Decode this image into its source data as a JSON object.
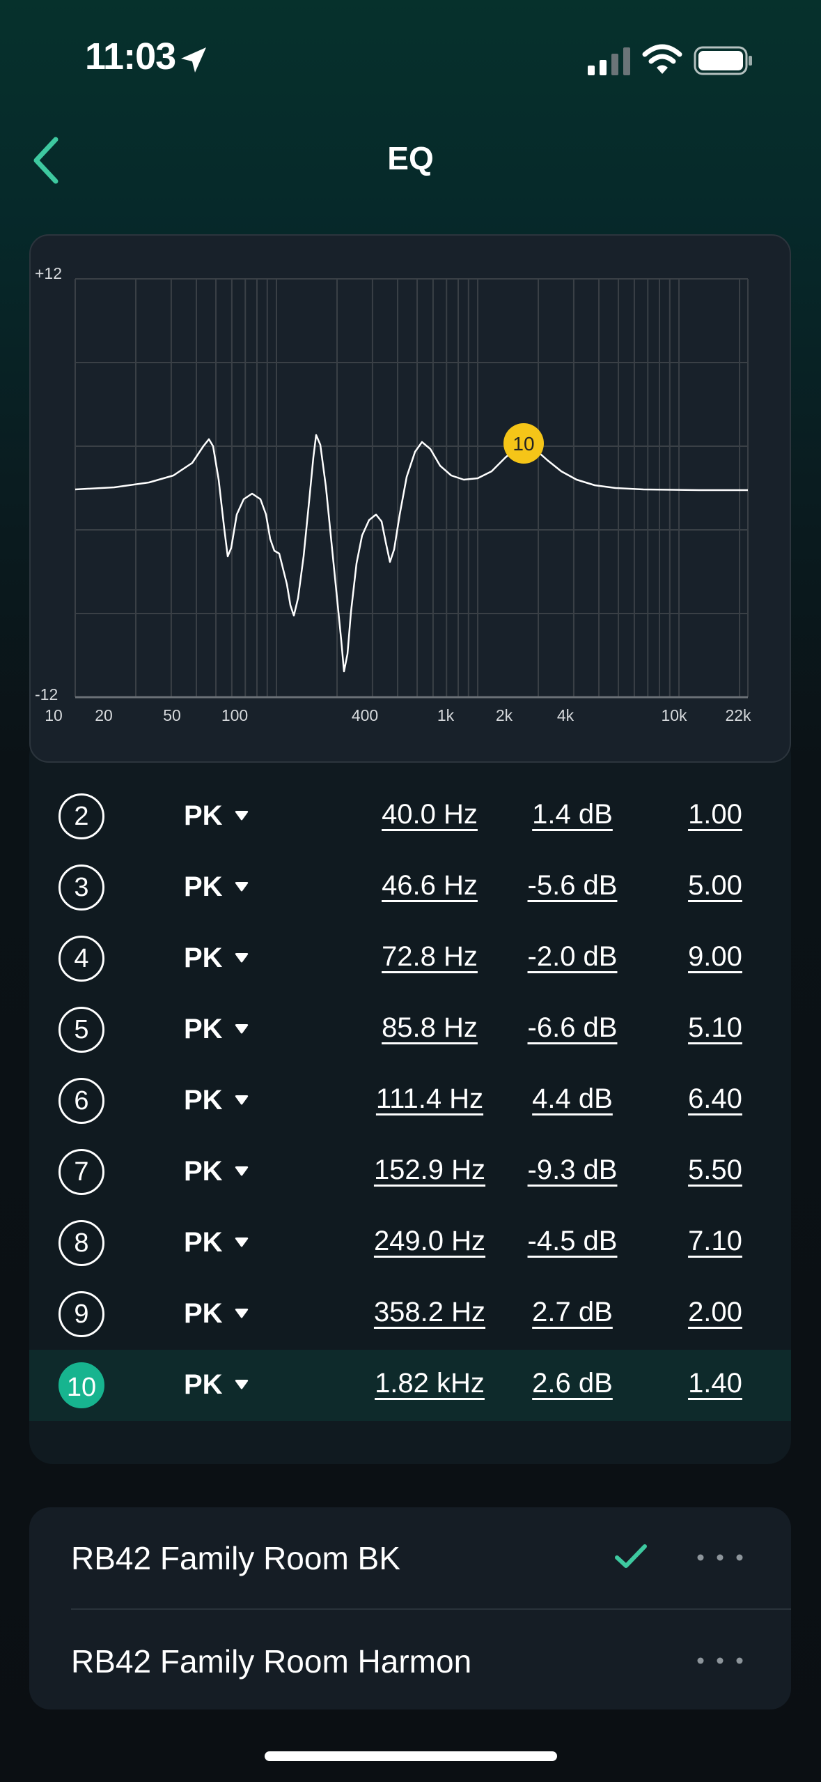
{
  "status_bar": {
    "time": "11:03"
  },
  "nav": {
    "title": "EQ"
  },
  "chart": {
    "y_top_label": "+12",
    "y_bottom_label": "-12",
    "x_labels": [
      "10",
      "20",
      "50",
      "100",
      "400",
      "1k",
      "2k",
      "4k",
      "10k",
      "22k"
    ],
    "selected_marker": "10",
    "marker_color": "#f5c518"
  },
  "bands": [
    {
      "num": "2",
      "type": "PK",
      "freq": "40.0 Hz",
      "gain": "1.4 dB",
      "q": "1.00"
    },
    {
      "num": "3",
      "type": "PK",
      "freq": "46.6 Hz",
      "gain": "-5.6 dB",
      "q": "5.00"
    },
    {
      "num": "4",
      "type": "PK",
      "freq": "72.8 Hz",
      "gain": "-2.0 dB",
      "q": "9.00"
    },
    {
      "num": "5",
      "type": "PK",
      "freq": "85.8 Hz",
      "gain": "-6.6 dB",
      "q": "5.10"
    },
    {
      "num": "6",
      "type": "PK",
      "freq": "111.4 Hz",
      "gain": "4.4 dB",
      "q": "6.40"
    },
    {
      "num": "7",
      "type": "PK",
      "freq": "152.9 Hz",
      "gain": "-9.3 dB",
      "q": "5.50"
    },
    {
      "num": "8",
      "type": "PK",
      "freq": "249.0 Hz",
      "gain": "-4.5 dB",
      "q": "7.10"
    },
    {
      "num": "9",
      "type": "PK",
      "freq": "358.2 Hz",
      "gain": "2.7 dB",
      "q": "2.00"
    },
    {
      "num": "10",
      "type": "PK",
      "freq": "1.82 kHz",
      "gain": "2.6 dB",
      "q": "1.40"
    }
  ],
  "presets": [
    {
      "label": "RB42 Family Room BK",
      "selected": true
    },
    {
      "label": "RB42 Family Room Harmon",
      "selected": false
    }
  ],
  "colors": {
    "accent": "#17b48f",
    "check": "#3ec9a0"
  }
}
